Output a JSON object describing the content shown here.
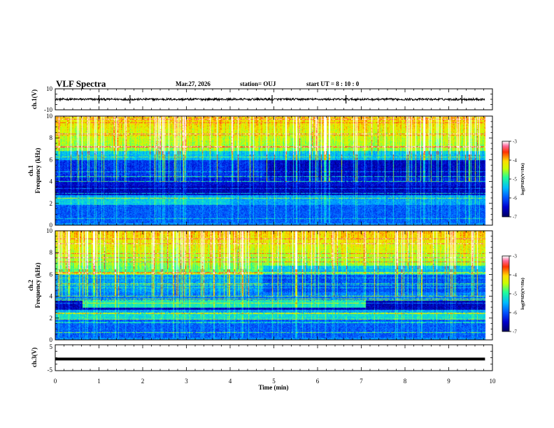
{
  "header": {
    "title": "VLF Spectra",
    "date": "Mar.27, 2026",
    "station": "station= OUJ",
    "start_ut": "start  UT =   8  : 10 : 0"
  },
  "chart_data": [
    {
      "id": "ch1_waveform",
      "type": "line",
      "ylabel": "ch.1(V)",
      "ylim": [
        -10,
        10
      ],
      "yticks": [
        "10",
        "-10"
      ],
      "baseline_value": 0,
      "noise_amplitude": 1,
      "x_range_min": [
        0,
        9.83
      ],
      "spikes_min": [
        1.0,
        1.71,
        4.96,
        6.65,
        9.3
      ]
    },
    {
      "id": "ch1_spectrogram",
      "type": "heatmap",
      "ylabel_channel": "ch.1",
      "ylabel": "Frequency  (kHz)",
      "ylim": [
        0,
        10
      ],
      "yticks": [
        "0",
        "2",
        "4",
        "6",
        "8",
        "10"
      ],
      "x_range_min": [
        0,
        9.83
      ],
      "colorbar": {
        "label": "log(PSD)(V²/Hz)",
        "range": [
          -7,
          -3
        ],
        "ticks": [
          "-3",
          "-4",
          "-5",
          "-6",
          "-7"
        ]
      }
    },
    {
      "id": "ch2_spectrogram",
      "type": "heatmap",
      "ylabel_channel": "ch.2",
      "ylabel": "Frequency  (kHz)",
      "ylim": [
        0,
        10
      ],
      "yticks": [
        "0",
        "2",
        "4",
        "6",
        "8",
        "10"
      ],
      "x_range_min": [
        0,
        9.83
      ],
      "colorbar": {
        "label": "log(PSD)(V²/Hz)",
        "range": [
          -7,
          -3
        ],
        "ticks": [
          "-3",
          "-4",
          "-5",
          "-6",
          "-7"
        ]
      }
    },
    {
      "id": "ch3_waveform",
      "type": "line",
      "ylabel": "ch.3(V)",
      "ylim": [
        -5,
        5
      ],
      "yticks": [
        "5",
        "-5"
      ],
      "baseline_value": -0.5,
      "x_range_min": [
        0,
        9.83
      ]
    }
  ],
  "xaxis": {
    "label": "Time  (min)",
    "range": [
      0,
      10
    ],
    "ticks": [
      "0",
      "1",
      "2",
      "3",
      "4",
      "5",
      "6",
      "7",
      "8",
      "9",
      "10"
    ]
  },
  "colors": {
    "cmap": [
      "#000066",
      "#0000cc",
      "#0055ff",
      "#00bbff",
      "#22ff99",
      "#ccff00",
      "#ffdd00",
      "#ff3300",
      "#ff6699",
      "#ffffff"
    ]
  }
}
